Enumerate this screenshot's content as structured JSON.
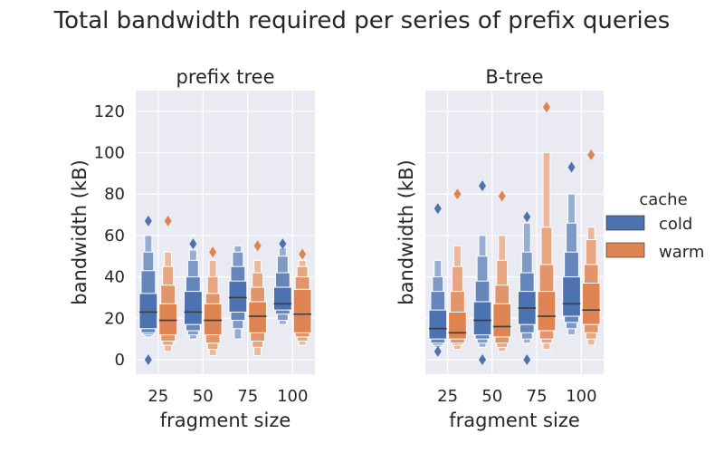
{
  "figure": {
    "title": "Total bandwidth required per series of prefix queries"
  },
  "legend": {
    "title": "cache",
    "placement": "right"
  },
  "colors": {
    "cold": "#4c72b0",
    "warm": "#dd8452",
    "panel_bg": "#eaeaf2",
    "grid": "#ffffff",
    "text": "#262626"
  },
  "chart_data": [
    {
      "type": "boxenplot",
      "title": "prefix tree",
      "xlabel": "fragment size",
      "ylabel": "bandwidth (kB)",
      "categories": [
        "25",
        "50",
        "75",
        "100"
      ],
      "ylim": [
        -7,
        130
      ],
      "yticks": [
        0,
        20,
        40,
        60,
        80,
        100,
        120
      ],
      "grid": true,
      "series": [
        {
          "name": "cold",
          "stats": [
            {
              "median": 23,
              "levels": [
                [
                  15,
                  32
                ],
                [
                  13,
                  43
                ],
                [
                  12,
                  52
                ],
                [
                  11,
                  60
                ]
              ],
              "outliers": [
                67,
                0
              ]
            },
            {
              "median": 23,
              "levels": [
                [
                  17,
                  33
                ],
                [
                  14,
                  40
                ],
                [
                  12,
                  48
                ],
                [
                  10,
                  53
                ]
              ],
              "outliers": [
                56
              ]
            },
            {
              "median": 30,
              "levels": [
                [
                  23,
                  38
                ],
                [
                  19,
                  45
                ],
                [
                  15,
                  52
                ],
                [
                  10,
                  55
                ]
              ],
              "outliers": []
            },
            {
              "median": 27,
              "levels": [
                [
                  24,
                  35
                ],
                [
                  22,
                  42
                ],
                [
                  19,
                  50
                ],
                [
                  17,
                  54
                ]
              ],
              "outliers": [
                56
              ]
            }
          ]
        },
        {
          "name": "warm",
          "stats": [
            {
              "median": 19,
              "levels": [
                [
                  12,
                  27
                ],
                [
                  9,
                  36
                ],
                [
                  7,
                  45
                ],
                [
                  4,
                  52
                ]
              ],
              "outliers": [
                67
              ]
            },
            {
              "median": 19,
              "levels": [
                [
                  12,
                  27
                ],
                [
                  8,
                  32
                ],
                [
                  5,
                  40
                ],
                [
                  2,
                  48
                ]
              ],
              "outliers": [
                52
              ]
            },
            {
              "median": 21,
              "levels": [
                [
                  13,
                  28
                ],
                [
                  9,
                  35
                ],
                [
                  6,
                  42
                ],
                [
                  2,
                  48
                ]
              ],
              "outliers": [
                55
              ]
            },
            {
              "median": 22,
              "levels": [
                [
                  13,
                  34
                ],
                [
                  11,
                  40
                ],
                [
                  9,
                  45
                ],
                [
                  7,
                  48
                ]
              ],
              "outliers": [
                51
              ]
            }
          ]
        }
      ]
    },
    {
      "type": "boxenplot",
      "title": "B-tree",
      "xlabel": "fragment size",
      "ylabel": "bandwidth (kB)",
      "categories": [
        "25",
        "50",
        "75",
        "100"
      ],
      "ylim": [
        -7,
        130
      ],
      "yticks": [
        0,
        20,
        40,
        60,
        80,
        100,
        120
      ],
      "grid": true,
      "series": [
        {
          "name": "cold",
          "stats": [
            {
              "median": 15,
              "levels": [
                [
                  10,
                  24
                ],
                [
                  8,
                  33
                ],
                [
                  7,
                  40
                ],
                [
                  6,
                  48
                ]
              ],
              "outliers": [
                73,
                4
              ]
            },
            {
              "median": 19,
              "levels": [
                [
                  12,
                  28
                ],
                [
                  10,
                  38
                ],
                [
                  8,
                  50
                ],
                [
                  6,
                  60
                ]
              ],
              "outliers": [
                84,
                0
              ]
            },
            {
              "median": 25,
              "levels": [
                [
                  17,
                  33
                ],
                [
                  13,
                  42
                ],
                [
                  10,
                  52
                ],
                [
                  8,
                  66
                ]
              ],
              "outliers": [
                69,
                0
              ]
            },
            {
              "median": 27,
              "levels": [
                [
                  21,
                  40
                ],
                [
                  18,
                  52
                ],
                [
                  15,
                  66
                ],
                [
                  12,
                  80
                ]
              ],
              "outliers": [
                93
              ]
            }
          ]
        },
        {
          "name": "warm",
          "stats": [
            {
              "median": 13,
              "levels": [
                [
                  10,
                  23
                ],
                [
                  8,
                  33
                ],
                [
                  7,
                  45
                ],
                [
                  5,
                  55
                ]
              ],
              "outliers": [
                80
              ]
            },
            {
              "median": 16,
              "levels": [
                [
                  11,
                  27
                ],
                [
                  8,
                  36
                ],
                [
                  6,
                  48
                ],
                [
                  4,
                  60
                ]
              ],
              "outliers": [
                79
              ]
            },
            {
              "median": 21,
              "levels": [
                [
                  14,
                  33
                ],
                [
                  10,
                  46
                ],
                [
                  8,
                  64
                ],
                [
                  5,
                  100
                ]
              ],
              "outliers": [
                122
              ]
            },
            {
              "median": 24,
              "levels": [
                [
                  17,
                  37
                ],
                [
                  13,
                  46
                ],
                [
                  10,
                  58
                ],
                [
                  7,
                  64
                ]
              ],
              "outliers": [
                99
              ]
            }
          ]
        }
      ]
    }
  ]
}
